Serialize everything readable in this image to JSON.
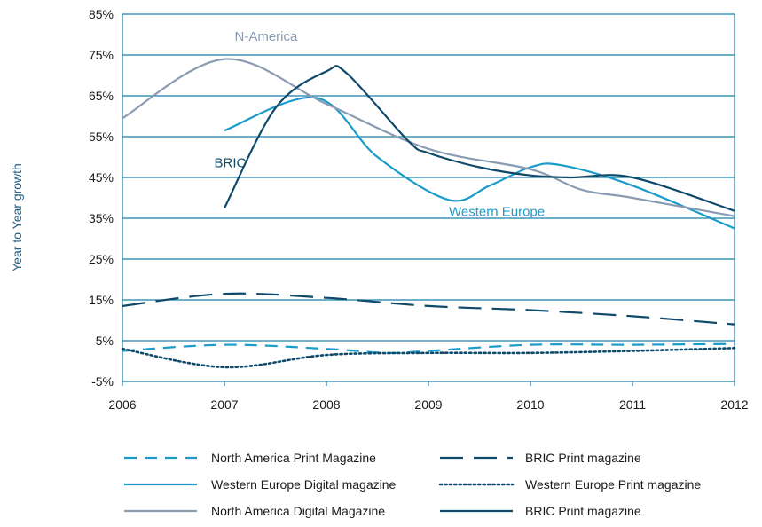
{
  "chart_data": {
    "type": "line",
    "ylabel": "Year to Year growth",
    "xlabel": "",
    "title": "",
    "x": [
      2006,
      2007,
      2008,
      2009,
      2010,
      2011,
      2012
    ],
    "x_tick_labels": [
      "2006",
      "2007",
      "2008",
      "2009",
      "2010",
      "2011",
      "2012"
    ],
    "y_ticks": [
      -5,
      5,
      15,
      25,
      35,
      45,
      55,
      65,
      75,
      85
    ],
    "y_tick_labels": [
      "-5%",
      "5%",
      "15%",
      "25%",
      "35%",
      "45%",
      "55%",
      "65%",
      "75%",
      "85%"
    ],
    "ylim": [
      -5,
      85
    ],
    "xlim": [
      2006,
      2012
    ],
    "grid": "horizontal",
    "legend_position": "bottom",
    "series": [
      {
        "name": "North America Print Magazine",
        "color": "#1b9bc9",
        "dash": "dashed",
        "points": [
          [
            2006,
            2.5
          ],
          [
            2007,
            4
          ],
          [
            2008,
            3
          ],
          [
            2008.6,
            2
          ],
          [
            2009,
            2.5
          ],
          [
            2010,
            4
          ],
          [
            2011,
            4
          ],
          [
            2012,
            4.2
          ]
        ]
      },
      {
        "name": "BRIC Print magazine",
        "color": "#0f4a6b",
        "dash": "long-dash",
        "points": [
          [
            2006,
            13.5
          ],
          [
            2007,
            16.5
          ],
          [
            2008,
            15.5
          ],
          [
            2009,
            13.5
          ],
          [
            2010,
            12.5
          ],
          [
            2011,
            11
          ],
          [
            2012,
            9
          ]
        ]
      },
      {
        "name": "Western Europe Digital magazine",
        "color": "#1b9bc9",
        "dash": "solid",
        "points": [
          [
            2007,
            56.5
          ],
          [
            2007.9,
            64.5
          ],
          [
            2008.5,
            50
          ],
          [
            2009.2,
            39.5
          ],
          [
            2009.6,
            43
          ],
          [
            2010,
            47.5
          ],
          [
            2010.3,
            48
          ],
          [
            2011,
            43
          ],
          [
            2012,
            32.5
          ]
        ]
      },
      {
        "name": "Western Europe Print magazine",
        "color": "#0f4a6b",
        "dash": "dotted",
        "points": [
          [
            2006,
            3
          ],
          [
            2007,
            -1.5
          ],
          [
            2008,
            1.5
          ],
          [
            2009,
            2
          ],
          [
            2010,
            2
          ],
          [
            2011,
            2.5
          ],
          [
            2012,
            3.2
          ]
        ]
      },
      {
        "name": "North America Digital Magazine",
        "color": "#8a9bb2",
        "dash": "solid",
        "points": [
          [
            2006,
            59.5
          ],
          [
            2007,
            74
          ],
          [
            2008,
            63
          ],
          [
            2009,
            52
          ],
          [
            2010,
            47
          ],
          [
            2010.5,
            42
          ],
          [
            2011,
            40
          ],
          [
            2012,
            35.5
          ]
        ]
      },
      {
        "name": "BRIC Print magazine",
        "color": "#0f4a6b",
        "dash": "solid",
        "points": [
          [
            2007,
            37.5
          ],
          [
            2007.5,
            62
          ],
          [
            2008,
            71
          ],
          [
            2008.2,
            70.5
          ],
          [
            2008.8,
            54
          ],
          [
            2009,
            51
          ],
          [
            2009.5,
            47.5
          ],
          [
            2010,
            45.5
          ],
          [
            2010.4,
            45
          ],
          [
            2011,
            45
          ],
          [
            2012,
            36.8
          ]
        ]
      }
    ],
    "annotations": [
      {
        "text": "N-America",
        "x": 2007.1,
        "y": 78.5,
        "color": "#8a9bb2"
      },
      {
        "text": "BRIC",
        "x": 2006.9,
        "y": 47.5,
        "color": "#0f4a6b"
      },
      {
        "text": "Western Europe",
        "x": 2009.2,
        "y": 35.5,
        "color": "#1b9bc9"
      }
    ]
  }
}
